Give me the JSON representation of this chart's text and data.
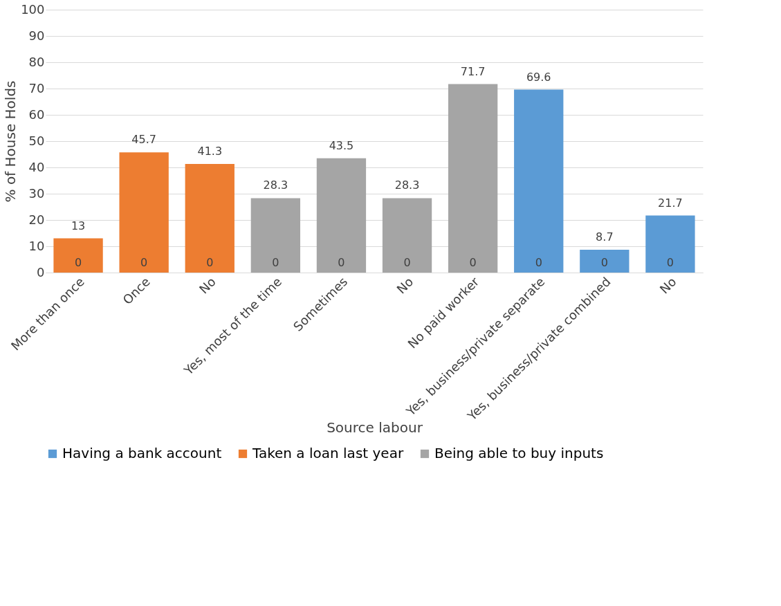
{
  "chart_data": {
    "type": "bar",
    "xlabel": "Source labour",
    "ylabel": "% of House Holds",
    "categories": [
      "More than once",
      "Once",
      "No",
      "Yes, most of the time",
      "Sometimes",
      "No",
      "No paid worker",
      "Yes, business/private separate",
      "Yes, business/private combined",
      "No"
    ],
    "series": [
      {
        "name": "Having a bank account",
        "color": "#5b9bd5",
        "values": [
          0,
          0,
          0,
          0,
          0,
          0,
          0,
          69.6,
          8.7,
          21.7
        ],
        "value_labels": [
          "0",
          "0",
          "0",
          "0",
          "0",
          "0",
          "0",
          "69.6",
          "8.7",
          "21.7"
        ]
      },
      {
        "name": "Taken a loan last year",
        "color": "#ed7d31",
        "values": [
          13,
          45.7,
          41.3,
          0,
          0,
          0,
          0,
          0,
          0,
          0
        ],
        "value_labels": [
          "13",
          "45.7",
          "41.3",
          null,
          null,
          null,
          null,
          "0",
          "0",
          "0"
        ]
      },
      {
        "name": "Being able to buy inputs",
        "color": "#a5a5a5",
        "values": [
          0,
          0,
          0,
          28.3,
          43.5,
          28.3,
          71.7,
          0,
          0,
          0
        ],
        "value_labels": [
          null,
          null,
          null,
          "28.3",
          "43.5",
          "28.3",
          "71.7",
          null,
          null,
          null
        ]
      }
    ],
    "ylim": [
      0,
      100
    ],
    "yticks": [
      0,
      10,
      20,
      30,
      40,
      50,
      60,
      70,
      80,
      90,
      100
    ],
    "grid": "y",
    "legend": "bottom"
  }
}
